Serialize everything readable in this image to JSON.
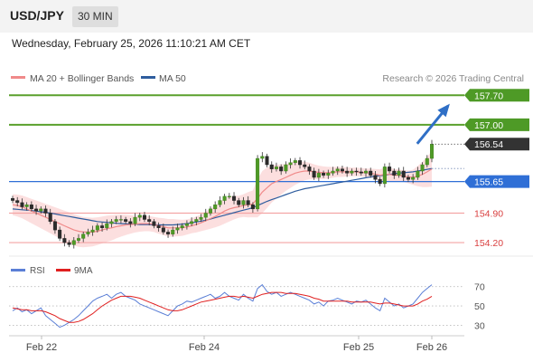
{
  "header": {
    "pair": "USD/JPY",
    "timeframe": "30 MIN"
  },
  "datetime": "Wednesday, February 25, 2026 11:10:21 AM CET",
  "legend": {
    "items": [
      {
        "label": "MA 20 + Bollinger Bands",
        "color": "#f08a8a"
      },
      {
        "label": "MA 50",
        "color": "#2f5d9e"
      }
    ],
    "source": "Research © 2026 Trading Central"
  },
  "chart_data": {
    "type": "candlestick",
    "price_axis": {
      "ylim": [
        153.9,
        157.9
      ]
    },
    "x_ticks": [
      {
        "label": "Feb 22",
        "x": 0.1
      },
      {
        "label": "Feb 24",
        "x": 2.1
      },
      {
        "label": "Feb 25",
        "x": 4.0
      },
      {
        "label": "Feb 26",
        "x": 4.9
      }
    ],
    "xlim": [
      -0.3,
      5.3
    ],
    "last_price": {
      "value": 156.54,
      "label": "156.54"
    },
    "levels": [
      {
        "value": 157.7,
        "label": "157.70",
        "kind": "resistance"
      },
      {
        "value": 157.0,
        "label": "157.00",
        "kind": "resistance"
      },
      {
        "value": 155.65,
        "label": "155.65",
        "kind": "pivot"
      },
      {
        "value": 154.9,
        "label": "154.90",
        "kind": "support"
      },
      {
        "value": 154.2,
        "label": "154.20",
        "kind": "support"
      }
    ],
    "arrow": {
      "from": [
        4.72,
        156.55
      ],
      "to": [
        5.1,
        157.45
      ]
    },
    "close": [
      155.2,
      155.15,
      155.05,
      155.1,
      155.0,
      154.95,
      155.0,
      154.9,
      154.7,
      154.5,
      154.3,
      154.2,
      154.15,
      154.25,
      154.3,
      154.4,
      154.45,
      154.5,
      154.6,
      154.55,
      154.65,
      154.7,
      154.75,
      154.75,
      154.7,
      154.65,
      154.8,
      154.85,
      154.75,
      154.7,
      154.6,
      154.55,
      154.45,
      154.4,
      154.5,
      154.55,
      154.6,
      154.65,
      154.7,
      154.75,
      154.8,
      154.9,
      155.0,
      155.1,
      155.2,
      155.3,
      155.3,
      155.2,
      155.1,
      155.2,
      155.1,
      155.0,
      156.2,
      156.25,
      156.05,
      155.95,
      156.0,
      155.9,
      156.05,
      156.1,
      156.15,
      156.05,
      156.0,
      155.9,
      155.75,
      155.85,
      155.8,
      155.85,
      155.9,
      155.95,
      155.9,
      155.85,
      155.9,
      155.88,
      155.85,
      155.9,
      155.8,
      155.7,
      155.6,
      156.0,
      155.9,
      155.8,
      155.9,
      155.75,
      155.7,
      155.75,
      155.9,
      156.05,
      156.2,
      156.54
    ],
    "ma20": [
      155.1,
      155.08,
      155.05,
      155.0,
      154.95,
      154.9,
      154.85,
      154.8,
      154.75,
      154.7,
      154.65,
      154.6,
      154.55,
      154.5,
      154.47,
      154.45,
      154.45,
      154.45,
      154.47,
      154.5,
      154.53,
      154.55,
      154.58,
      154.6,
      154.62,
      154.63,
      154.64,
      154.65,
      154.65,
      154.65,
      154.63,
      154.6,
      154.58,
      154.55,
      154.55,
      154.55,
      154.55,
      154.57,
      154.6,
      154.63,
      154.67,
      154.72,
      154.77,
      154.82,
      154.88,
      154.95,
      155.0,
      155.03,
      155.05,
      155.08,
      155.1,
      155.12,
      155.25,
      155.4,
      155.5,
      155.6,
      155.65,
      155.7,
      155.75,
      155.8,
      155.85,
      155.88,
      155.9,
      155.9,
      155.88,
      155.87,
      155.86,
      155.86,
      155.87,
      155.88,
      155.88,
      155.88,
      155.88,
      155.88,
      155.87,
      155.86,
      155.85,
      155.83,
      155.8,
      155.82,
      155.82,
      155.8,
      155.8,
      155.78,
      155.76,
      155.75,
      155.78,
      155.82,
      155.88,
      155.95
    ],
    "ma50": [
      155.0,
      154.99,
      154.98,
      154.97,
      154.96,
      154.95,
      154.93,
      154.92,
      154.9,
      154.88,
      154.86,
      154.84,
      154.82,
      154.8,
      154.78,
      154.76,
      154.74,
      154.72,
      154.7,
      154.69,
      154.68,
      154.67,
      154.66,
      154.65,
      154.65,
      154.64,
      154.64,
      154.63,
      154.63,
      154.63,
      154.62,
      154.62,
      154.62,
      154.62,
      154.62,
      154.63,
      154.64,
      154.65,
      154.67,
      154.69,
      154.71,
      154.73,
      154.76,
      154.79,
      154.82,
      154.85,
      154.88,
      154.91,
      154.94,
      154.97,
      155.0,
      155.03,
      155.08,
      155.13,
      155.18,
      155.22,
      155.26,
      155.3,
      155.34,
      155.38,
      155.42,
      155.45,
      155.48,
      155.5,
      155.52,
      155.54,
      155.56,
      155.58,
      155.6,
      155.62,
      155.64,
      155.66,
      155.68,
      155.7,
      155.72,
      155.74,
      155.76,
      155.78,
      155.79,
      155.8,
      155.82,
      155.84,
      155.85,
      155.86,
      155.87,
      155.88,
      155.9,
      155.92,
      155.94,
      155.96
    ],
    "band_width": [
      0.25,
      0.26,
      0.27,
      0.28,
      0.29,
      0.3,
      0.31,
      0.32,
      0.33,
      0.34,
      0.35,
      0.36,
      0.37,
      0.37,
      0.37,
      0.36,
      0.35,
      0.34,
      0.33,
      0.32,
      0.31,
      0.3,
      0.28,
      0.26,
      0.24,
      0.22,
      0.2,
      0.19,
      0.18,
      0.18,
      0.18,
      0.19,
      0.2,
      0.21,
      0.21,
      0.2,
      0.19,
      0.18,
      0.18,
      0.19,
      0.2,
      0.22,
      0.24,
      0.26,
      0.28,
      0.3,
      0.3,
      0.28,
      0.26,
      0.27,
      0.3,
      0.32,
      0.45,
      0.5,
      0.48,
      0.45,
      0.4,
      0.36,
      0.32,
      0.3,
      0.28,
      0.25,
      0.22,
      0.2,
      0.18,
      0.16,
      0.15,
      0.14,
      0.13,
      0.12,
      0.12,
      0.11,
      0.1,
      0.1,
      0.1,
      0.1,
      0.11,
      0.12,
      0.14,
      0.16,
      0.16,
      0.15,
      0.14,
      0.14,
      0.15,
      0.18,
      0.24,
      0.3,
      0.36,
      0.42
    ]
  },
  "rsi": {
    "legend": [
      {
        "label": "RSI",
        "color": "#5b7fd6"
      },
      {
        "label": "9MA",
        "color": "#e02020"
      }
    ],
    "ylim": [
      22,
      80
    ],
    "ticks": [
      {
        "value": 70,
        "label": "70"
      },
      {
        "value": 50,
        "label": "50"
      },
      {
        "value": 30,
        "label": "30"
      }
    ],
    "rsi": [
      45,
      48,
      44,
      46,
      42,
      45,
      48,
      40,
      36,
      32,
      28,
      30,
      33,
      36,
      40,
      45,
      50,
      55,
      58,
      60,
      62,
      58,
      62,
      64,
      60,
      58,
      56,
      52,
      50,
      48,
      46,
      44,
      42,
      40,
      45,
      50,
      52,
      55,
      54,
      56,
      58,
      60,
      62,
      58,
      60,
      64,
      60,
      58,
      56,
      62,
      58,
      55,
      68,
      72,
      65,
      62,
      64,
      60,
      62,
      64,
      62,
      60,
      58,
      56,
      52,
      54,
      50,
      55,
      56,
      58,
      56,
      54,
      52,
      55,
      54,
      56,
      52,
      48,
      45,
      58,
      54,
      50,
      52,
      48,
      50,
      52,
      58,
      64,
      68,
      72
    ],
    "rsi_ma": [
      48,
      47,
      46,
      46,
      45,
      45,
      45,
      44,
      42,
      40,
      37,
      35,
      33,
      33,
      34,
      36,
      39,
      42,
      46,
      50,
      53,
      56,
      58,
      60,
      60,
      60,
      59,
      58,
      56,
      54,
      52,
      50,
      48,
      46,
      45,
      45,
      46,
      48,
      50,
      52,
      54,
      55,
      56,
      57,
      58,
      59,
      60,
      60,
      59,
      60,
      59,
      58,
      60,
      62,
      63,
      64,
      64,
      64,
      63,
      63,
      63,
      62,
      61,
      60,
      58,
      57,
      55,
      55,
      55,
      55,
      55,
      55,
      54,
      54,
      54,
      54,
      54,
      53,
      52,
      53,
      53,
      52,
      51,
      50,
      50,
      50,
      52,
      55,
      57,
      60
    ]
  }
}
